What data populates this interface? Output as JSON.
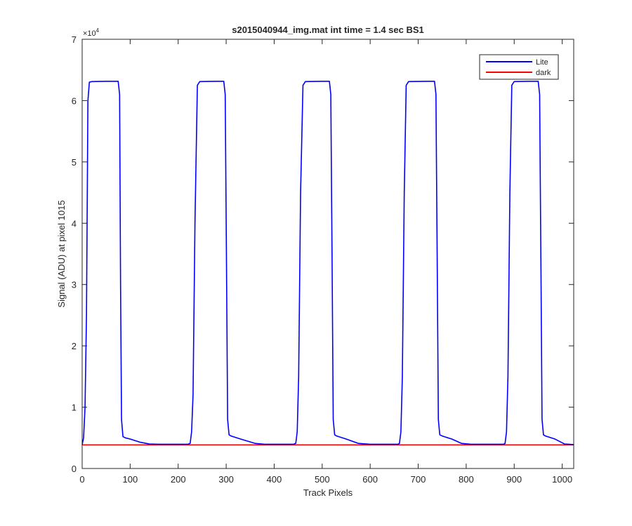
{
  "chart_data": {
    "type": "line",
    "title": "s2015040944_img.mat int time = 1.4 sec   BS1",
    "xlabel": "Track Pixels",
    "ylabel": "Signal (ADU) at pixel 1015",
    "y_exponent_label": "×10",
    "y_exponent_power": "4",
    "xlim": [
      0,
      1024
    ],
    "ylim": [
      0,
      70000
    ],
    "x_ticks": [
      0,
      100,
      200,
      300,
      400,
      500,
      600,
      700,
      800,
      900,
      1000
    ],
    "y_ticks": [
      0,
      10000,
      20000,
      30000,
      40000,
      50000,
      60000,
      70000
    ],
    "y_tick_labels": [
      "0",
      "1",
      "2",
      "3",
      "4",
      "5",
      "6",
      "7"
    ],
    "grid": false,
    "legend_position": "top-right",
    "series": [
      {
        "name": "Lite",
        "color": "#0000ff",
        "points": [
          [
            0,
            3900
          ],
          [
            3,
            5000
          ],
          [
            6,
            10000
          ],
          [
            9,
            25000
          ],
          [
            12,
            60000
          ],
          [
            15,
            63000
          ],
          [
            20,
            63100
          ],
          [
            50,
            63150
          ],
          [
            75,
            63150
          ],
          [
            78,
            61000
          ],
          [
            80,
            30000
          ],
          [
            82,
            8000
          ],
          [
            85,
            5200
          ],
          [
            90,
            5000
          ],
          [
            100,
            4800
          ],
          [
            120,
            4300
          ],
          [
            140,
            4000
          ],
          [
            160,
            3950
          ],
          [
            180,
            3950
          ],
          [
            200,
            3950
          ],
          [
            220,
            3950
          ],
          [
            225,
            4100
          ],
          [
            228,
            6000
          ],
          [
            231,
            12000
          ],
          [
            235,
            40000
          ],
          [
            240,
            62500
          ],
          [
            245,
            63100
          ],
          [
            280,
            63150
          ],
          [
            295,
            63150
          ],
          [
            298,
            61000
          ],
          [
            301,
            30000
          ],
          [
            303,
            8000
          ],
          [
            306,
            5500
          ],
          [
            310,
            5300
          ],
          [
            330,
            4800
          ],
          [
            360,
            4100
          ],
          [
            380,
            3950
          ],
          [
            400,
            3950
          ],
          [
            440,
            3950
          ],
          [
            445,
            4100
          ],
          [
            448,
            6000
          ],
          [
            451,
            15000
          ],
          [
            455,
            45000
          ],
          [
            460,
            62500
          ],
          [
            465,
            63100
          ],
          [
            500,
            63150
          ],
          [
            515,
            63150
          ],
          [
            518,
            61000
          ],
          [
            521,
            30000
          ],
          [
            523,
            8000
          ],
          [
            526,
            5500
          ],
          [
            530,
            5300
          ],
          [
            550,
            4800
          ],
          [
            575,
            4100
          ],
          [
            600,
            3950
          ],
          [
            640,
            3950
          ],
          [
            658,
            3950
          ],
          [
            661,
            4100
          ],
          [
            664,
            6000
          ],
          [
            667,
            15000
          ],
          [
            671,
            45000
          ],
          [
            675,
            62500
          ],
          [
            680,
            63100
          ],
          [
            720,
            63150
          ],
          [
            734,
            63150
          ],
          [
            737,
            61000
          ],
          [
            740,
            30000
          ],
          [
            742,
            8000
          ],
          [
            745,
            5500
          ],
          [
            750,
            5300
          ],
          [
            770,
            4800
          ],
          [
            790,
            4100
          ],
          [
            810,
            3950
          ],
          [
            850,
            3950
          ],
          [
            878,
            3950
          ],
          [
            881,
            4100
          ],
          [
            884,
            6000
          ],
          [
            887,
            15000
          ],
          [
            891,
            45000
          ],
          [
            895,
            62500
          ],
          [
            900,
            63100
          ],
          [
            930,
            63150
          ],
          [
            950,
            63150
          ],
          [
            953,
            61000
          ],
          [
            956,
            30000
          ],
          [
            958,
            8000
          ],
          [
            961,
            5500
          ],
          [
            965,
            5300
          ],
          [
            985,
            4800
          ],
          [
            1005,
            4000
          ],
          [
            1024,
            3900
          ]
        ]
      },
      {
        "name": "dark",
        "color": "#ff0000",
        "constant_y": 3850,
        "x_range": [
          0,
          1024
        ]
      }
    ]
  }
}
